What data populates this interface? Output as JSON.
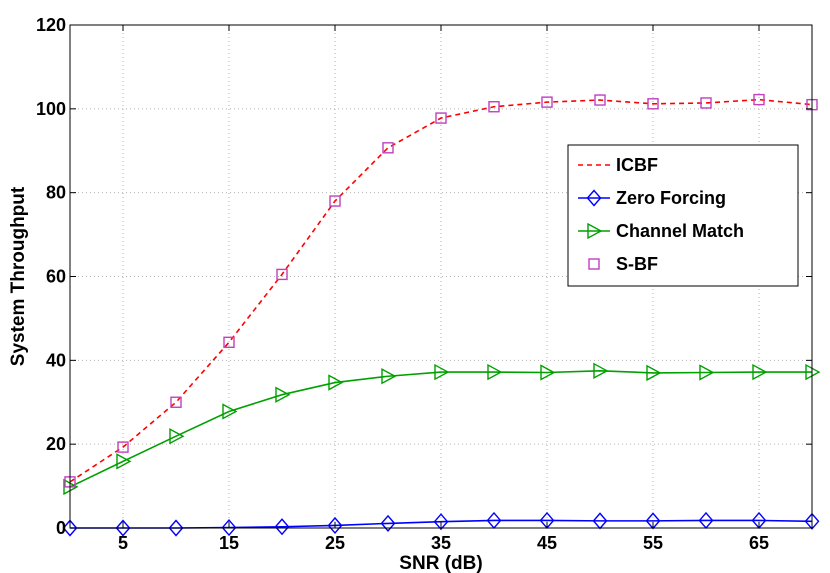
{
  "chart_data": {
    "type": "line",
    "xlabel": "SNR (dB)",
    "ylabel": "System Throughput",
    "xlim": [
      0,
      70
    ],
    "ylim": [
      0,
      120
    ],
    "xticks": [
      5,
      15,
      25,
      35,
      45,
      55,
      65
    ],
    "yticks": [
      0,
      20,
      40,
      60,
      80,
      100,
      120
    ],
    "grid": true,
    "legend_position": "right",
    "x": [
      0,
      5,
      10,
      15,
      20,
      25,
      30,
      35,
      40,
      45,
      50,
      55,
      60,
      65,
      70
    ],
    "series": [
      {
        "name": "ICBF",
        "color": "#ff0000",
        "style": "dashed",
        "marker": "none",
        "values": [
          11,
          19.3,
          30,
          44.3,
          60.5,
          78,
          90.7,
          97.8,
          100.5,
          101.6,
          102.1,
          101.2,
          101.4,
          102.2,
          101
        ]
      },
      {
        "name": "Zero Forcing",
        "color": "#0000ff",
        "style": "solid",
        "marker": "diamond",
        "values": [
          0,
          0,
          0,
          0.1,
          0.3,
          0.6,
          1.1,
          1.5,
          1.8,
          1.8,
          1.7,
          1.7,
          1.8,
          1.8,
          1.6
        ]
      },
      {
        "name": "Channel Match",
        "color": "#00a000",
        "style": "solid",
        "marker": "triangle-right",
        "values": [
          9.8,
          15.9,
          21.9,
          27.8,
          31.8,
          34.7,
          36.2,
          37.2,
          37.2,
          37.1,
          37.5,
          37.0,
          37.1,
          37.2,
          37.2
        ]
      },
      {
        "name": "S-BF",
        "color": "#c040c0",
        "style": "none",
        "marker": "square",
        "values": [
          11,
          19.3,
          30,
          44.3,
          60.5,
          78,
          90.7,
          97.8,
          100.5,
          101.6,
          102.1,
          101.2,
          101.4,
          102.2,
          101
        ]
      }
    ]
  }
}
